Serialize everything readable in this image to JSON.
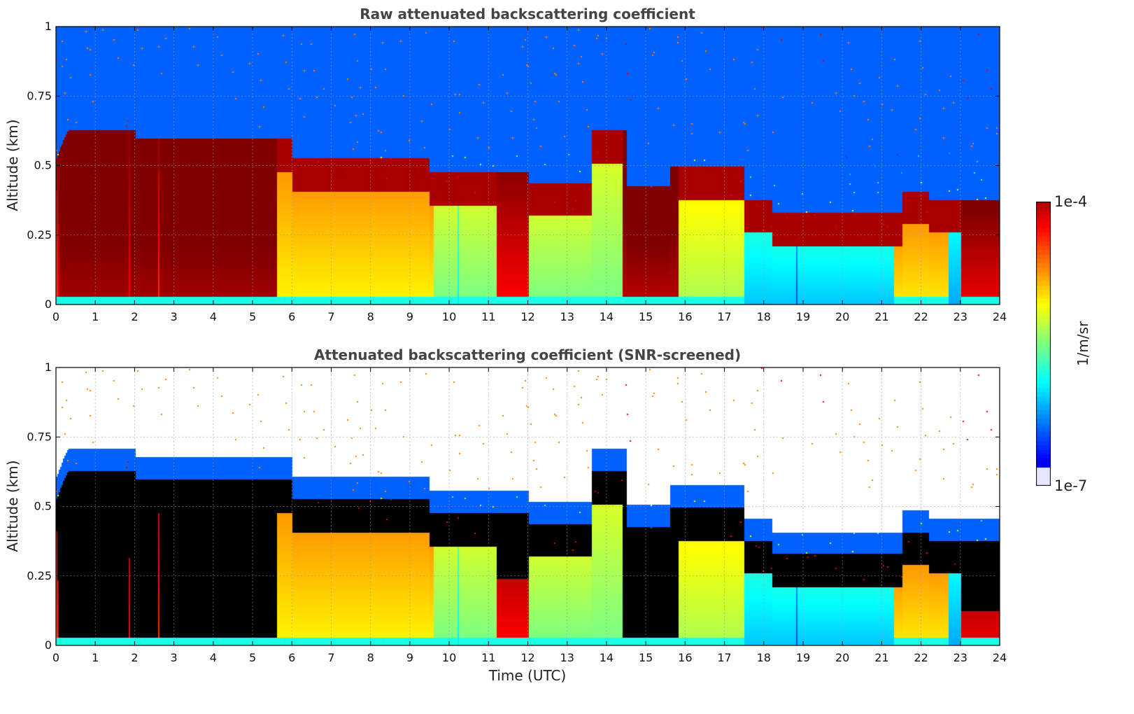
{
  "chart_data": [
    {
      "type": "heatmap",
      "title": "Raw attenuated backscattering coefficient",
      "ylabel": "Altitude (km)",
      "xlabel": "",
      "xlim": [
        0,
        24
      ],
      "ylim": [
        0,
        1
      ],
      "xticks": [
        "0",
        "1",
        "2",
        "3",
        "4",
        "5",
        "6",
        "7",
        "8",
        "9",
        "10",
        "11",
        "12",
        "13",
        "14",
        "15",
        "16",
        "17",
        "18",
        "19",
        "20",
        "21",
        "22",
        "23",
        "24"
      ],
      "yticks": [
        "0",
        "0.25",
        "0.5",
        "0.75",
        "1"
      ],
      "ytick_values": [
        0,
        0.25,
        0.5,
        0.75,
        1
      ],
      "grid": true,
      "screened": false
    },
    {
      "type": "heatmap",
      "title": "Attenuated backscattering coefficient (SNR-screened)",
      "ylabel": "Altitude (km)",
      "xlabel": "Time (UTC)",
      "xlim": [
        0,
        24
      ],
      "ylim": [
        0,
        1
      ],
      "xticks": [
        "0",
        "1",
        "2",
        "3",
        "4",
        "5",
        "6",
        "7",
        "8",
        "9",
        "10",
        "11",
        "12",
        "13",
        "14",
        "15",
        "16",
        "17",
        "18",
        "19",
        "20",
        "21",
        "22",
        "23",
        "24"
      ],
      "yticks": [
        "0",
        "0.25",
        "0.5",
        "0.75",
        "1"
      ],
      "ytick_values": [
        0,
        0.25,
        0.5,
        0.75,
        1
      ],
      "grid": true,
      "screened": true
    }
  ],
  "colorbar": {
    "max_label": "1e-4",
    "min_label": "1e-7",
    "unit": "1/m/sr",
    "colormap": "jet",
    "scale": "log"
  },
  "colors": {
    "title": "#444444",
    "saturated": "#000000",
    "low": "#e8e8ff"
  }
}
